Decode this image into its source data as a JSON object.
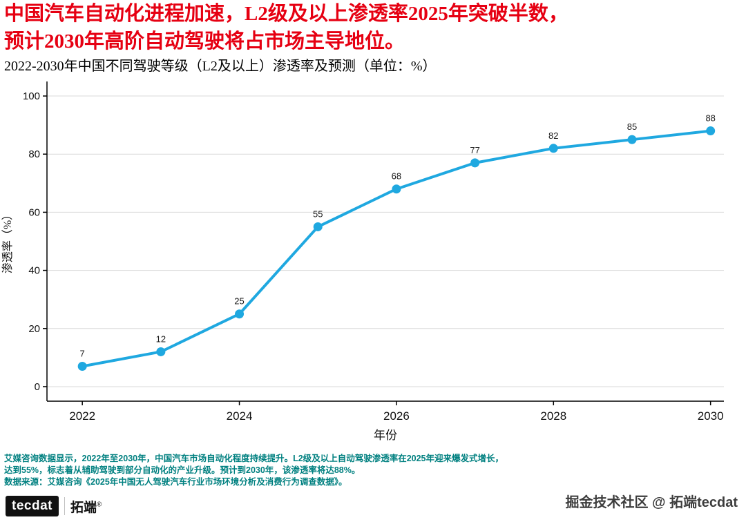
{
  "title": {
    "line1": "中国汽车自动化进程加速，L2级及以上渗透率2025年突破半数，",
    "line2": "预计2030年高阶自动驾驶将占市场主导地位。",
    "subtitle": "2022-2030年中国不同驾驶等级（L2及以上）渗透率及预测（单位：%）"
  },
  "chart_data": {
    "type": "line",
    "x": [
      2022,
      2023,
      2024,
      2025,
      2026,
      2027,
      2028,
      2029,
      2030
    ],
    "values": [
      7,
      12,
      25,
      55,
      68,
      77,
      82,
      85,
      88
    ],
    "xlabel": "年份",
    "ylabel": "渗透率（%）",
    "ylim": [
      0,
      100
    ],
    "yticks": [
      0,
      20,
      40,
      60,
      80,
      100
    ],
    "xticks": [
      2022,
      2024,
      2026,
      2028,
      2030
    ],
    "grid": true,
    "legend": "none",
    "line_color": "#1fa8e0",
    "point_color": "#1fa8e0",
    "label_color": "#1a1a1a"
  },
  "footnotes": {
    "line1": "艾媒咨询数据显示，2022年至2030年，中国汽车市场自动化程度持续提升。L2级及以上自动驾驶渗透率在2025年迎来爆发式增长，",
    "line2": "达到55%，标志着从辅助驾驶到部分自动化的产业升级。预计到2030年，该渗透率将达88%。",
    "line3": "数据来源：艾媒咨询《2025年中国无人驾驶汽车行业市场环境分析及消费行为调查数据》。"
  },
  "branding": {
    "logo_left": "tecdat",
    "logo_right": "拓端",
    "registered": "®",
    "watermark": "掘金技术社区 @ 拓端tecdat"
  },
  "colors": {
    "title": "#e60012",
    "footnote": "#008080",
    "line": "#1fa8e0",
    "grid": "#d9d9d9",
    "axis": "#000000"
  }
}
